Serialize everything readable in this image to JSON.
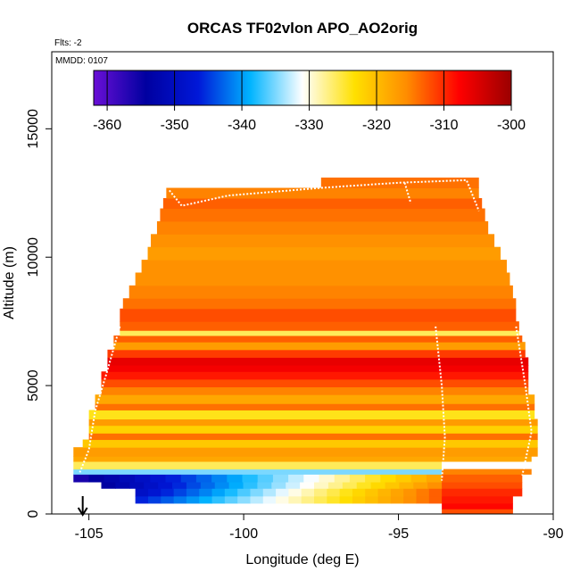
{
  "chart_data": {
    "type": "heatmap",
    "title": "ORCAS TF02vlon APO_AO2orig",
    "corner_note_1": "Flts: -2",
    "corner_note_2": "MMDD: 0107",
    "xlabel": "Longitude (deg E)",
    "ylabel": "Altitude (m)",
    "xlim": [
      -106.2,
      -90
    ],
    "ylim": [
      0,
      18000
    ],
    "x_ticks": [
      -105,
      -100,
      -95,
      -90
    ],
    "y_ticks": [
      0,
      5000,
      10000,
      15000
    ],
    "colorbar": {
      "min": -362,
      "max": -300,
      "ticks": [
        -360,
        -350,
        -340,
        -330,
        -320,
        -310,
        -300
      ],
      "colors": [
        "#6a0fd6",
        "#0000a0",
        "#0018d8",
        "#00b4ff",
        "#ffffff",
        "#ffe000",
        "#ff8c00",
        "#ff0000",
        "#9a0000"
      ]
    },
    "marker": {
      "x": -105.2,
      "label": "arrow"
    },
    "bands": [
      {
        "y0": 0,
        "y1": 200,
        "x0": -93.6,
        "x1": -91.3,
        "v": -312
      },
      {
        "y0": 200,
        "y1": 420,
        "x0": -93.6,
        "x1": -91.3,
        "v": -308
      },
      {
        "y0": 420,
        "y1": 700,
        "x0": -103.5,
        "x1": -93.6,
        "v": -329,
        "grad_x0_v": -346,
        "grad_x1_v": -313
      },
      {
        "y0": 420,
        "y1": 700,
        "x0": -93.6,
        "x1": -91.3,
        "v": -309
      },
      {
        "y0": 700,
        "y1": 1000,
        "x0": -103.5,
        "x1": -93.6,
        "v": -330,
        "grad_x0_v": -349,
        "grad_x1_v": -313
      },
      {
        "y0": 700,
        "y1": 1000,
        "x0": -93.6,
        "x1": -91.0,
        "v": -310
      },
      {
        "y0": 1000,
        "y1": 1250,
        "x0": -104.6,
        "x1": -93.6,
        "v": -331,
        "grad_x0_v": -354,
        "grad_x1_v": -316
      },
      {
        "y0": 1000,
        "y1": 1250,
        "x0": -93.6,
        "x1": -91.0,
        "v": -312
      },
      {
        "y0": 1250,
        "y1": 1550,
        "x0": -105.5,
        "x1": -93.6,
        "v": -333,
        "grad_x0_v": -356,
        "grad_x1_v": -318
      },
      {
        "y0": 1250,
        "y1": 1550,
        "x0": -93.6,
        "x1": -91.0,
        "v": -313
      },
      {
        "y0": 1550,
        "y1": 1750,
        "x0": -105.5,
        "x1": -93.6,
        "v": -335
      },
      {
        "y0": 1550,
        "y1": 1750,
        "x0": -93.6,
        "x1": -90.7,
        "v": -315
      },
      {
        "y0": 1750,
        "y1": 2050,
        "x0": -105.5,
        "x1": -93.6,
        "v": -326
      },
      {
        "y0": 2050,
        "y1": 2250,
        "x0": -105.5,
        "x1": -90.7,
        "v": -318
      },
      {
        "y0": 2250,
        "y1": 2600,
        "x0": -105.5,
        "x1": -90.5,
        "v": -317
      },
      {
        "y0": 2600,
        "y1": 2900,
        "x0": -105.2,
        "x1": -90.5,
        "v": -321
      },
      {
        "y0": 2900,
        "y1": 3150,
        "x0": -105.0,
        "x1": -90.5,
        "v": -314
      },
      {
        "y0": 3150,
        "y1": 3450,
        "x0": -105.0,
        "x1": -90.5,
        "v": -322
      },
      {
        "y0": 3450,
        "y1": 3700,
        "x0": -105.0,
        "x1": -90.5,
        "v": -317
      },
      {
        "y0": 3700,
        "y1": 4050,
        "x0": -105.0,
        "x1": -90.6,
        "v": -324
      },
      {
        "y0": 4050,
        "y1": 4300,
        "x0": -104.8,
        "x1": -90.6,
        "v": -314
      },
      {
        "y0": 4300,
        "y1": 4650,
        "x0": -104.8,
        "x1": -90.6,
        "v": -318
      },
      {
        "y0": 4650,
        "y1": 4950,
        "x0": -104.6,
        "x1": -90.8,
        "v": -315
      },
      {
        "y0": 4950,
        "y1": 5250,
        "x0": -104.6,
        "x1": -90.8,
        "v": -312
      },
      {
        "y0": 5250,
        "y1": 5550,
        "x0": -104.6,
        "x1": -90.8,
        "v": -309
      },
      {
        "y0": 5550,
        "y1": 5800,
        "x0": -104.4,
        "x1": -90.8,
        "v": -307
      },
      {
        "y0": 5800,
        "y1": 6100,
        "x0": -104.4,
        "x1": -90.8,
        "v": -306
      },
      {
        "y0": 6100,
        "y1": 6400,
        "x0": -104.4,
        "x1": -90.9,
        "v": -311
      },
      {
        "y0": 6400,
        "y1": 6700,
        "x0": -104.2,
        "x1": -90.9,
        "v": -317
      },
      {
        "y0": 6700,
        "y1": 6950,
        "x0": -104.2,
        "x1": -91.0,
        "v": -313
      },
      {
        "y0": 6950,
        "y1": 7150,
        "x0": -104.0,
        "x1": -91.1,
        "v": -326
      },
      {
        "y0": 7150,
        "y1": 7500,
        "x0": -104.0,
        "x1": -91.1,
        "v": -313
      },
      {
        "y0": 7500,
        "y1": 8000,
        "x0": -104.0,
        "x1": -91.2,
        "v": -312
      },
      {
        "y0": 8000,
        "y1": 8400,
        "x0": -103.9,
        "x1": -91.2,
        "v": -314
      },
      {
        "y0": 8400,
        "y1": 8900,
        "x0": -103.7,
        "x1": -91.3,
        "v": -315
      },
      {
        "y0": 8900,
        "y1": 9400,
        "x0": -103.5,
        "x1": -91.4,
        "v": -316
      },
      {
        "y0": 9400,
        "y1": 9900,
        "x0": -103.3,
        "x1": -91.5,
        "v": -316
      },
      {
        "y0": 9900,
        "y1": 10400,
        "x0": -103.1,
        "x1": -91.7,
        "v": -317
      },
      {
        "y0": 10400,
        "y1": 10900,
        "x0": -103.0,
        "x1": -91.9,
        "v": -316
      },
      {
        "y0": 10900,
        "y1": 11400,
        "x0": -102.8,
        "x1": -92.1,
        "v": -315
      },
      {
        "y0": 11400,
        "y1": 11900,
        "x0": -102.7,
        "x1": -92.2,
        "v": -314
      },
      {
        "y0": 11900,
        "y1": 12300,
        "x0": -102.6,
        "x1": -92.3,
        "v": -313
      },
      {
        "y0": 12300,
        "y1": 12700,
        "x0": -102.5,
        "x1": -92.4,
        "v": -315
      },
      {
        "y0": 12700,
        "y1": 13100,
        "x0": -97.5,
        "x1": -92.4,
        "v": -314
      }
    ],
    "flight_tracks": [
      [
        [
          -102.4,
          12600
        ],
        [
          -102.0,
          12000
        ],
        [
          -100.5,
          12400
        ],
        [
          -97.5,
          12700
        ],
        [
          -95.0,
          12900
        ],
        [
          -92.8,
          13000
        ],
        [
          -92.4,
          11800
        ]
      ],
      [
        [
          -104.0,
          7300
        ],
        [
          -104.4,
          5600
        ],
        [
          -104.8,
          4000
        ],
        [
          -105.0,
          2500
        ],
        [
          -105.3,
          1600
        ]
      ],
      [
        [
          -93.8,
          7300
        ],
        [
          -93.6,
          5000
        ],
        [
          -93.5,
          3000
        ],
        [
          -93.6,
          1300
        ]
      ],
      [
        [
          -91.2,
          7300
        ],
        [
          -90.9,
          5000
        ],
        [
          -90.7,
          3200
        ],
        [
          -91.0,
          1500
        ]
      ],
      [
        [
          -94.8,
          12900
        ],
        [
          -94.6,
          12100
        ]
      ]
    ]
  }
}
